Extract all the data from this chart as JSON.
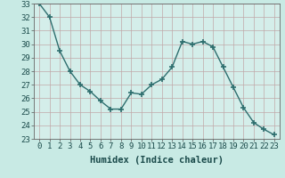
{
  "xlabel": "Humidex (Indice chaleur)",
  "x": [
    0,
    1,
    2,
    3,
    4,
    5,
    6,
    7,
    8,
    9,
    10,
    11,
    12,
    13,
    14,
    15,
    16,
    17,
    18,
    19,
    20,
    21,
    22,
    23
  ],
  "y": [
    33.0,
    32.0,
    29.5,
    28.0,
    27.0,
    26.5,
    25.8,
    25.2,
    25.2,
    26.4,
    26.3,
    27.0,
    27.4,
    28.3,
    30.2,
    30.0,
    30.2,
    29.8,
    28.3,
    26.8,
    25.3,
    24.2,
    23.7,
    23.3
  ],
  "line_color": "#2d6e6e",
  "marker": "+",
  "marker_size": 4,
  "bg_color": "#d4eeea",
  "grid_color": "#c0a8a8",
  "ylim": [
    23,
    33
  ],
  "yticks": [
    23,
    24,
    25,
    26,
    27,
    28,
    29,
    30,
    31,
    32,
    33
  ],
  "tick_fontsize": 6.5,
  "xlabel_fontsize": 7.5,
  "fig_bg_color": "#c8eae4"
}
